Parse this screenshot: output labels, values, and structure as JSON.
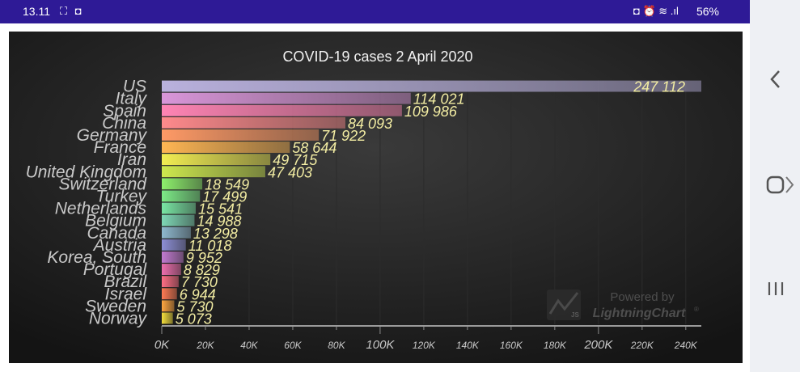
{
  "status_bar": {
    "time": "13.11",
    "left_icons": "⛶ ◘",
    "right_icons": "◘ ⏰ ≋ .ıl",
    "battery": "56%"
  },
  "chart_data": {
    "type": "bar",
    "orientation": "horizontal",
    "title": "COVID-19 cases 2 April 2020",
    "categories": [
      "US",
      "Italy",
      "Spain",
      "China",
      "Germany",
      "France",
      "Iran",
      "United Kingdom",
      "Switzerland",
      "Turkey",
      "Netherlands",
      "Belgium",
      "Canada",
      "Austria",
      "Korea, South",
      "Portugal",
      "Brazil",
      "Israel",
      "Sweden",
      "Norway"
    ],
    "values": [
      247112,
      114021,
      109986,
      84093,
      71922,
      58644,
      49715,
      47403,
      18549,
      17499,
      15541,
      14988,
      13298,
      11018,
      9952,
      8829,
      7730,
      6944,
      5730,
      5073
    ],
    "data_labels": [
      "247 112",
      "114 021",
      "109 986",
      "84 093",
      "71 922",
      "58 644",
      "49 715",
      "47 403",
      "18 549",
      "17 499",
      "15 541",
      "14 988",
      "13 298",
      "11 018",
      "9 952",
      "8 829",
      "7 730",
      "6 944",
      "5 730",
      "5 073"
    ],
    "xlim": [
      0,
      247112
    ],
    "x_ticks": [
      0,
      20000,
      40000,
      60000,
      80000,
      100000,
      120000,
      140000,
      160000,
      180000,
      200000,
      220000,
      240000
    ],
    "x_tick_labels": [
      "0K",
      "20K",
      "40K",
      "60K",
      "80K",
      "100K",
      "120K",
      "140K",
      "160K",
      "180K",
      "200K",
      "220K",
      "240K"
    ],
    "major_ticks": [
      "0K",
      "100K",
      "200K"
    ],
    "colors": [
      "#b9b1dd",
      "#d996d9",
      "#ff84b4",
      "#ff8a8c",
      "#ff9a66",
      "#ffb653",
      "#f2ee52",
      "#cde84e",
      "#8ef16c",
      "#7deb87",
      "#79e6a4",
      "#7fd8b6",
      "#8fb9cf",
      "#8d8fd6",
      "#c27bd1",
      "#ee6fae",
      "#ff6e85",
      "#ff7a54",
      "#ffa640",
      "#f5df3c"
    ],
    "grid": true,
    "watermark": {
      "powered": "Powered by",
      "brand": "LightningChart",
      "mark": "®",
      "js": "JS"
    }
  }
}
